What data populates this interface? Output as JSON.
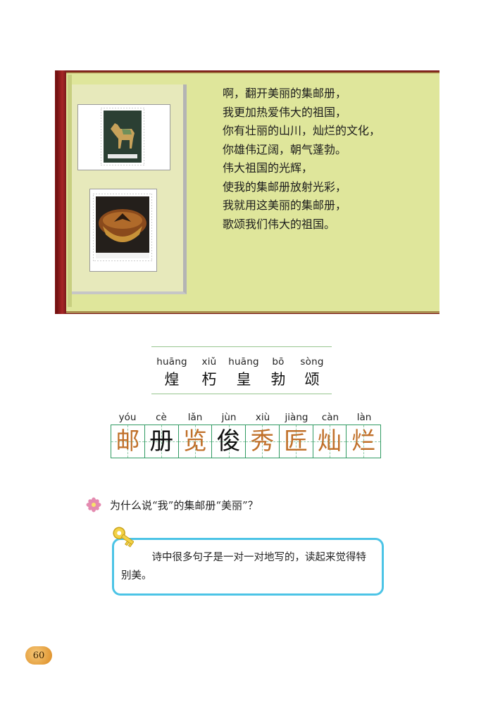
{
  "poem": {
    "lines": [
      "啊，翻开美丽的集邮册，",
      "我更加热爱伟大的祖国，",
      "你有壮丽的山川，灿烂的文化，",
      "你雄伟辽阔，朝气蓬勃。",
      "伟大祖国的光辉，",
      "使我的集邮册放射光彩，",
      "我就用这美丽的集邮册，",
      "歌颂我们伟大的祖国。"
    ]
  },
  "vocabulary": [
    {
      "pinyin": "huāng",
      "hanzi": "煌"
    },
    {
      "pinyin": "xiǔ",
      "hanzi": "朽"
    },
    {
      "pinyin": "huāng",
      "hanzi": "皇"
    },
    {
      "pinyin": "bō",
      "hanzi": "勃"
    },
    {
      "pinyin": "sòng",
      "hanzi": "颂"
    }
  ],
  "writing_grid": [
    {
      "pinyin": "yóu",
      "hanzi": "邮",
      "color": "#c0702a"
    },
    {
      "pinyin": "cè",
      "hanzi": "册",
      "color": "#111111"
    },
    {
      "pinyin": "lǎn",
      "hanzi": "览",
      "color": "#c0702a"
    },
    {
      "pinyin": "jùn",
      "hanzi": "俊",
      "color": "#111111"
    },
    {
      "pinyin": "xiù",
      "hanzi": "秀",
      "color": "#c0702a"
    },
    {
      "pinyin": "jiàng",
      "hanzi": "匠",
      "color": "#c0702a"
    },
    {
      "pinyin": "càn",
      "hanzi": "灿",
      "color": "#c0702a"
    },
    {
      "pinyin": "làn",
      "hanzi": "烂",
      "color": "#c0702a"
    }
  ],
  "question": {
    "text": "为什么说“我”的集邮册“美丽”？",
    "icon": "flower-icon"
  },
  "answer": {
    "text": "诗中很多句子是一对一对地写的，读起来觉得特别美。",
    "icon": "key-icon"
  },
  "page_number": "60",
  "colors": {
    "album_page": "#dfe69b",
    "album_spine": "#7a1414",
    "grid_green": "#2f9a62",
    "answer_border": "#4cc4e6",
    "accent_char": "#c0702a"
  }
}
